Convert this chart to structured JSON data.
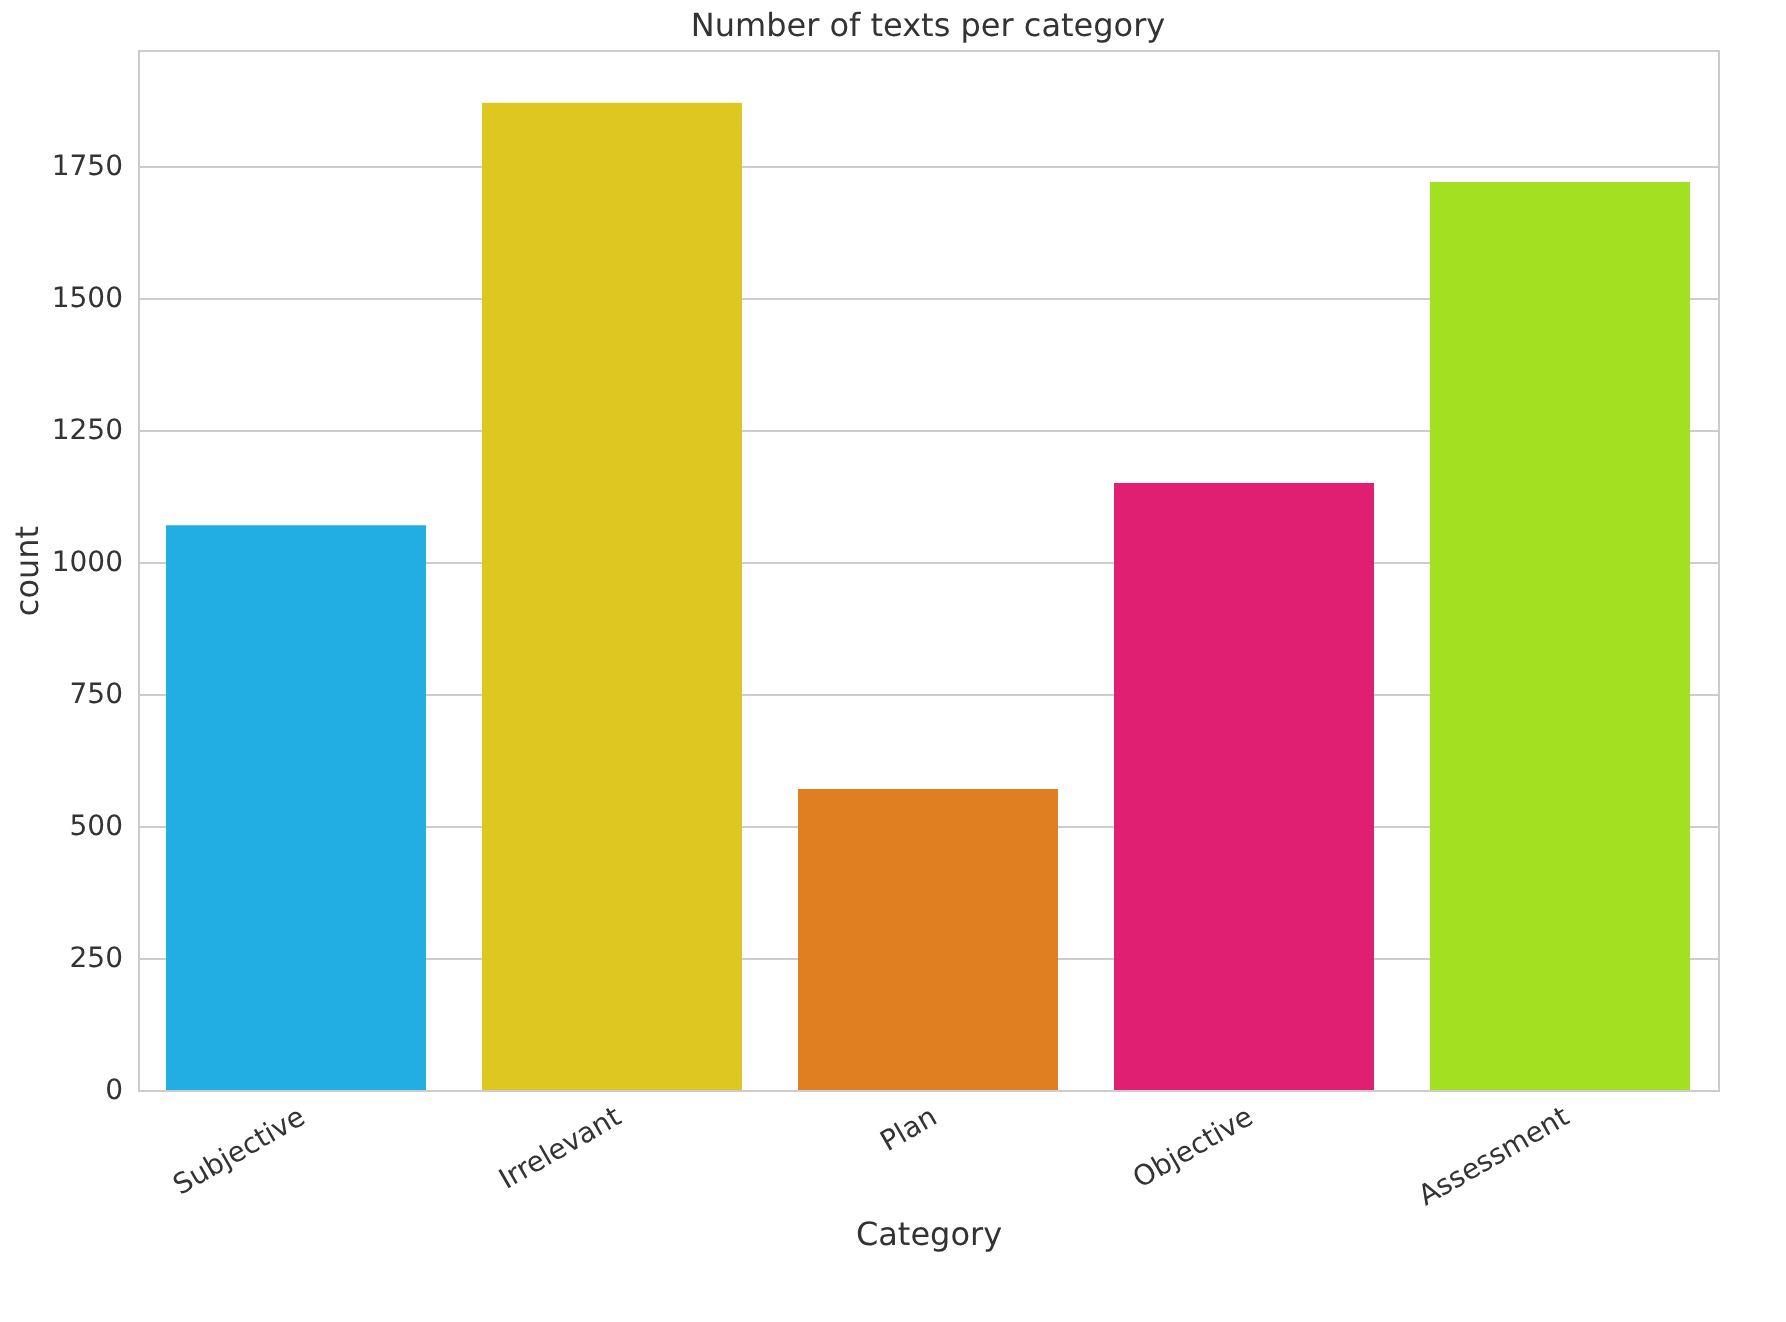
{
  "chart_data": {
    "type": "bar",
    "title": "Number of texts per category",
    "xlabel": "Category",
    "ylabel": "count",
    "categories": [
      "Subjective",
      "Irrelevant",
      "Plan",
      "Objective",
      "Assessment"
    ],
    "values": [
      1070,
      1870,
      570,
      1150,
      1720
    ],
    "colors": [
      "#22aee0",
      "#dfc721",
      "#e07f21",
      "#e01f72",
      "#a3e021"
    ],
    "ylim": [
      0,
      1970
    ],
    "yticks": [
      0,
      250,
      500,
      750,
      1000,
      1250,
      1500,
      1750
    ],
    "grid": "y"
  }
}
